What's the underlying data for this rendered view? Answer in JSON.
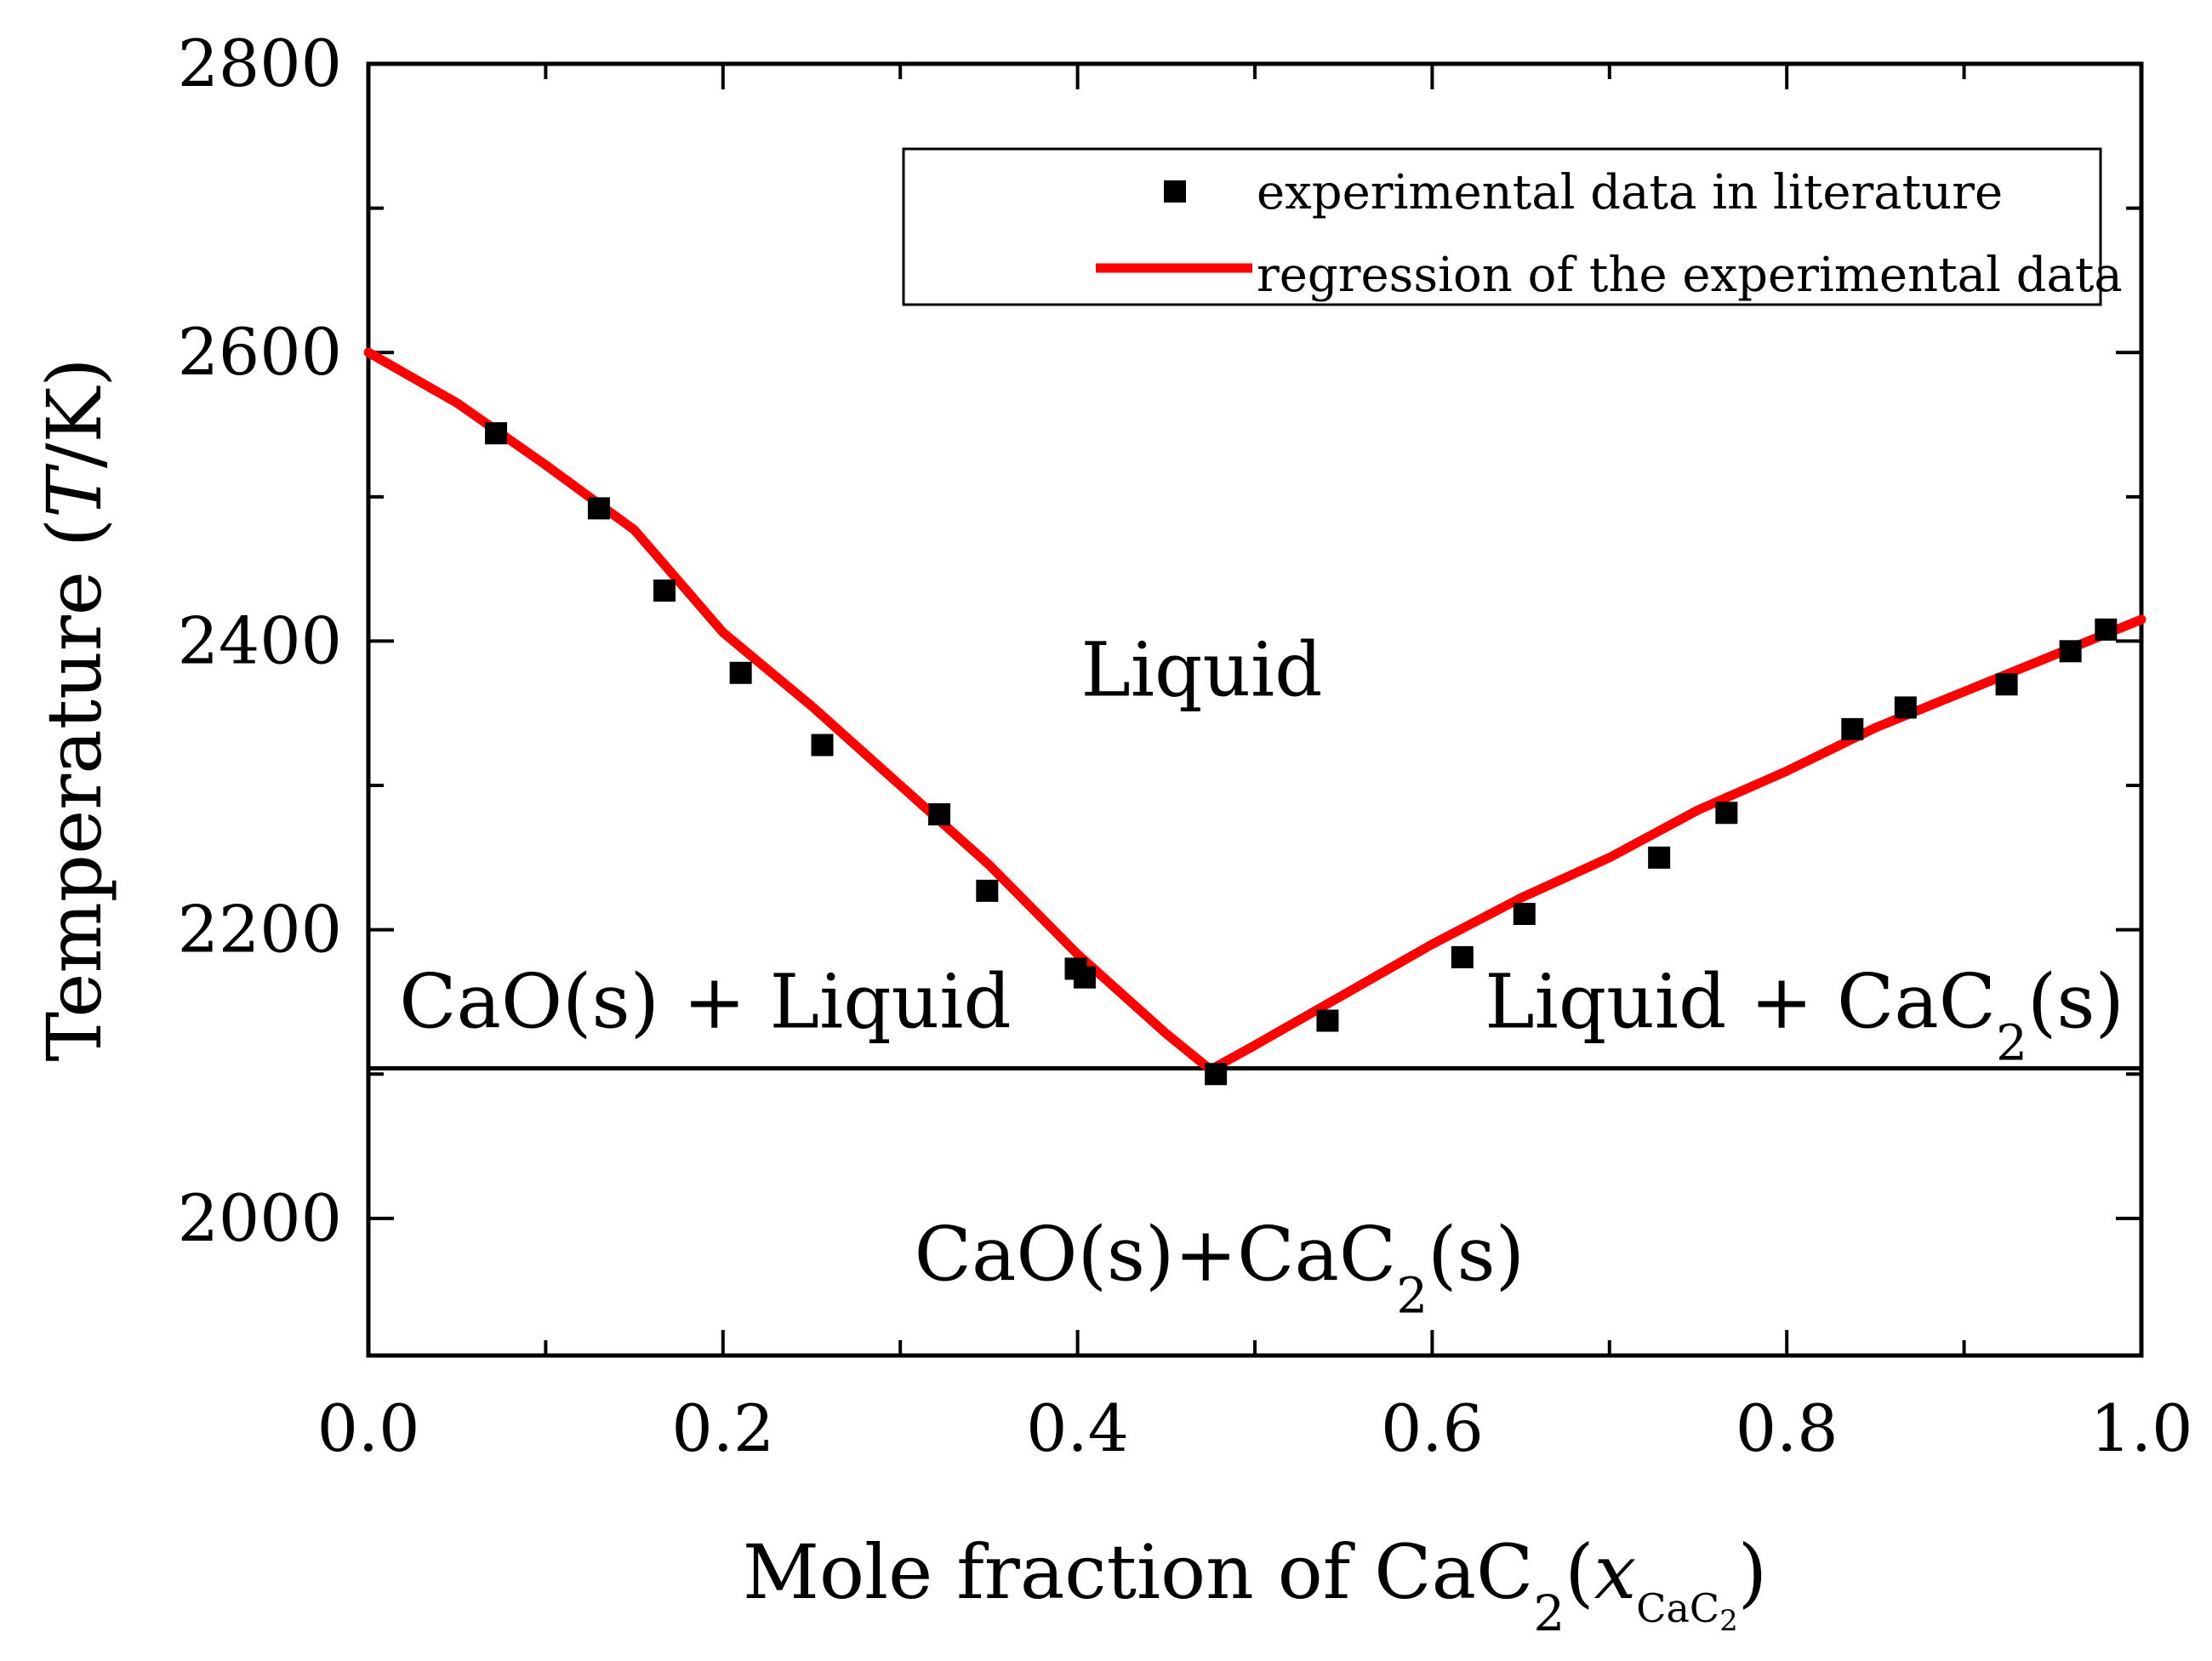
{
  "chart_data": {
    "type": "scatter",
    "title": "",
    "xlabel": {
      "main": "Mole fraction of CaC",
      "main_sub": "2",
      "open_paren": "(",
      "var": "x",
      "var_sub": "CaC",
      "var_sub_sub": "2",
      "close_paren": ")"
    },
    "ylabel": {
      "main": "Temperature (",
      "var": "T",
      "unit": "/K)"
    },
    "xlim": [
      0.0,
      1.0
    ],
    "ylim": [
      1905,
      2800
    ],
    "x_ticks": [
      "0.0",
      "0.2",
      "0.4",
      "0.6",
      "0.8",
      "1.0"
    ],
    "x_tick_values": [
      0.0,
      0.2,
      0.4,
      0.6,
      0.8,
      1.0
    ],
    "y_ticks": [
      "2000",
      "2200",
      "2400",
      "2600",
      "2800"
    ],
    "y_tick_values": [
      2000,
      2200,
      2400,
      2600,
      2800
    ],
    "grid": false,
    "legend": {
      "placement": "top-right",
      "entries": [
        "experimental data in literature",
        "regression of the experimental data"
      ]
    },
    "colors": {
      "experimental": "#000000",
      "regression": "#ff0000",
      "axes": "#000000",
      "eutectic_line": "#000000"
    },
    "series": [
      {
        "name": "experimental data in literature",
        "kind": "points",
        "x": [
          0.072,
          0.13,
          0.167,
          0.21,
          0.256,
          0.322,
          0.349,
          0.399,
          0.404,
          0.478,
          0.541,
          0.617,
          0.652,
          0.728,
          0.766,
          0.837,
          0.867,
          0.924,
          0.96,
          0.98
        ],
        "y": [
          2544,
          2492,
          2435,
          2378,
          2328,
          2280,
          2227,
          2173,
          2167,
          2100,
          2137,
          2181,
          2211,
          2250,
          2281,
          2339,
          2354,
          2370,
          2393,
          2408
        ]
      },
      {
        "name": "regression of the experimental data",
        "kind": "line",
        "x": [
          0.0,
          0.05,
          0.1,
          0.15,
          0.2,
          0.25,
          0.3,
          0.35,
          0.4,
          0.45,
          0.475,
          0.5,
          0.55,
          0.6,
          0.65,
          0.7,
          0.75,
          0.8,
          0.85,
          0.9,
          0.95,
          1.0
        ],
        "y": [
          2600,
          2565,
          2522,
          2477,
          2406,
          2355,
          2300,
          2245,
          2183,
          2128,
          2103,
          2120,
          2155,
          2190,
          2222,
          2250,
          2283,
          2310,
          2340,
          2365,
          2390,
          2415
        ]
      },
      {
        "name": "eutectic line",
        "kind": "hline",
        "y": 2104
      }
    ],
    "annotations": [
      {
        "id": "liquid",
        "text": "Liquid",
        "x": 0.47,
        "y": 2380
      },
      {
        "id": "cao-liquid",
        "text": "CaO(s) + Liquid",
        "x": 0.19,
        "y": 2150
      },
      {
        "id": "liquid-cac2",
        "parts": [
          "Liquid + CaC",
          "2",
          "(s)"
        ],
        "x": 0.81,
        "y": 2150
      },
      {
        "id": "cao-cac2",
        "parts": [
          "CaO(s)+CaC",
          "2",
          "(s)"
        ],
        "x": 0.48,
        "y": 1975
      }
    ]
  }
}
